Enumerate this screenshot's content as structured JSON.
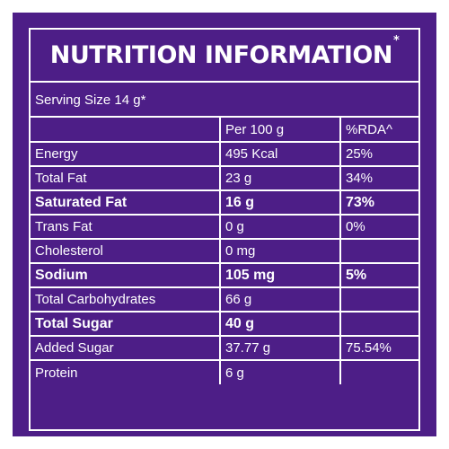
{
  "title": "NUTRITION INFORMATION",
  "title_mark": "*",
  "serving_size": "Serving Size 14 g*",
  "header": {
    "nutrient": "",
    "per_100g": "Per 100 g",
    "rda": "%RDA^"
  },
  "rows": [
    {
      "nutrient": "Energy",
      "per_100g": "495 Kcal",
      "rda": "25%",
      "bold": false
    },
    {
      "nutrient": "Total Fat",
      "per_100g": "23 g",
      "rda": "34%",
      "bold": false
    },
    {
      "nutrient": "Saturated Fat",
      "per_100g": "16 g",
      "rda": "73%",
      "bold": true
    },
    {
      "nutrient": "Trans Fat",
      "per_100g": "0 g",
      "rda": "0%",
      "bold": false
    },
    {
      "nutrient": "Cholesterol",
      "per_100g": "0 mg",
      "rda": "",
      "bold": false
    },
    {
      "nutrient": "Sodium",
      "per_100g": "105 mg",
      "rda": "5%",
      "bold": true
    },
    {
      "nutrient": "Total Carbohydrates",
      "per_100g": "66 g",
      "rda": "",
      "bold": false
    },
    {
      "nutrient": "Total Sugar",
      "per_100g": "40 g",
      "rda": "",
      "bold": true
    },
    {
      "nutrient": "Added Sugar",
      "per_100g": "37.77 g",
      "rda": "75.54%",
      "bold": false
    },
    {
      "nutrient": "Protein",
      "per_100g": "6 g",
      "rda": "",
      "bold": false
    }
  ],
  "colors": {
    "background": "#4d1e87",
    "text": "#ffffff",
    "border": "#ffffff"
  }
}
